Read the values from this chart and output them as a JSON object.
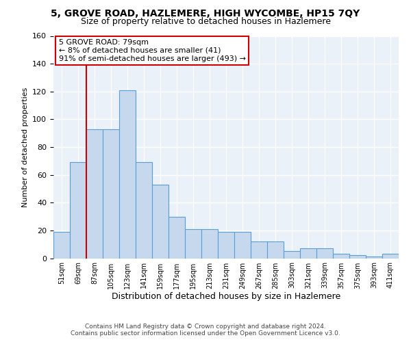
{
  "title": "5, GROVE ROAD, HAZLEMERE, HIGH WYCOMBE, HP15 7QY",
  "subtitle": "Size of property relative to detached houses in Hazlemere",
  "xlabel": "Distribution of detached houses by size in Hazlemere",
  "ylabel": "Number of detached properties",
  "bar_color": "#c5d8ed",
  "bar_edge_color": "#5a9fd4",
  "categories": [
    "51sqm",
    "69sqm",
    "87sqm",
    "105sqm",
    "123sqm",
    "141sqm",
    "159sqm",
    "177sqm",
    "195sqm",
    "213sqm",
    "231sqm",
    "249sqm",
    "267sqm",
    "285sqm",
    "303sqm",
    "321sqm",
    "339sqm",
    "357sqm",
    "375sqm",
    "393sqm",
    "411sqm"
  ],
  "values": [
    19,
    69,
    93,
    93,
    121,
    69,
    53,
    30,
    21,
    21,
    19,
    19,
    12,
    12,
    5,
    7,
    7,
    3,
    2,
    1,
    3
  ],
  "ylim": [
    0,
    160
  ],
  "yticks": [
    0,
    20,
    40,
    60,
    80,
    100,
    120,
    140,
    160
  ],
  "property_label": "5 GROVE ROAD: 79sqm",
  "annotation_line1": "← 8% of detached houses are smaller (41)",
  "annotation_line2": "91% of semi-detached houses are larger (493) →",
  "annotation_box_color": "#ffffff",
  "annotation_box_edge": "#cc0000",
  "vline_color": "#cc0000",
  "vline_x_index": 1.5,
  "background_color": "#eaf1f9",
  "grid_color": "#ffffff",
  "footer_line1": "Contains HM Land Registry data © Crown copyright and database right 2024.",
  "footer_line2": "Contains public sector information licensed under the Open Government Licence v3.0."
}
